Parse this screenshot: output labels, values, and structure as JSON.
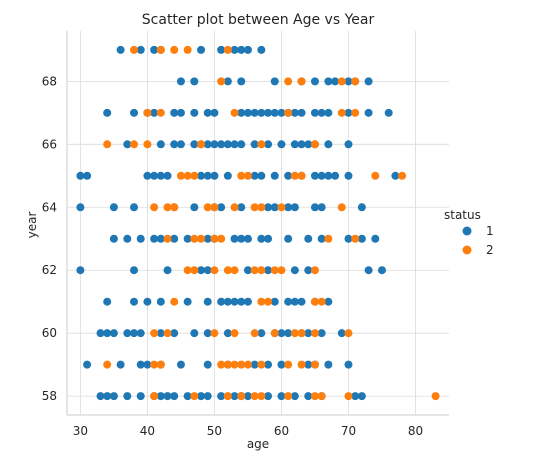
{
  "chart_data": {
    "type": "scatter",
    "title": "Scatter plot between Age vs Year",
    "xlabel": "age",
    "ylabel": "year",
    "xlim": [
      28,
      85
    ],
    "ylim": [
      57.4,
      69.6
    ],
    "xticks": [
      30,
      40,
      50,
      60,
      70,
      80
    ],
    "yticks": [
      58,
      60,
      62,
      64,
      66,
      68
    ],
    "grid": true,
    "legend": {
      "title": "status",
      "placement": "right"
    },
    "series": [
      {
        "name": "1",
        "color": "#1f77b4",
        "points": [
          [
            36,
            69
          ],
          [
            39,
            69
          ],
          [
            41,
            69
          ],
          [
            42,
            69
          ],
          [
            48,
            69
          ],
          [
            51,
            69
          ],
          [
            53,
            69
          ],
          [
            54,
            69
          ],
          [
            55,
            69
          ],
          [
            57,
            69
          ],
          [
            45,
            68
          ],
          [
            47,
            68
          ],
          [
            52,
            68
          ],
          [
            54,
            68
          ],
          [
            59,
            68
          ],
          [
            63,
            68
          ],
          [
            65,
            68
          ],
          [
            67,
            68
          ],
          [
            68,
            68
          ],
          [
            70,
            68
          ],
          [
            71,
            68
          ],
          [
            73,
            68
          ],
          [
            34,
            67
          ],
          [
            38,
            67
          ],
          [
            40,
            67
          ],
          [
            41,
            67
          ],
          [
            44,
            67
          ],
          [
            45,
            67
          ],
          [
            47,
            67
          ],
          [
            49,
            67
          ],
          [
            50,
            67
          ],
          [
            54,
            67
          ],
          [
            55,
            67
          ],
          [
            56,
            67
          ],
          [
            57,
            67
          ],
          [
            58,
            67
          ],
          [
            59,
            67
          ],
          [
            60,
            67
          ],
          [
            61,
            67
          ],
          [
            62,
            67
          ],
          [
            63,
            67
          ],
          [
            65,
            67
          ],
          [
            66,
            67
          ],
          [
            67,
            67
          ],
          [
            70,
            67
          ],
          [
            73,
            67
          ],
          [
            76,
            67
          ],
          [
            37,
            66
          ],
          [
            42,
            66
          ],
          [
            44,
            66
          ],
          [
            45,
            66
          ],
          [
            47,
            66
          ],
          [
            48,
            66
          ],
          [
            49,
            66
          ],
          [
            50,
            66
          ],
          [
            51,
            66
          ],
          [
            52,
            66
          ],
          [
            53,
            66
          ],
          [
            54,
            66
          ],
          [
            56,
            66
          ],
          [
            58,
            66
          ],
          [
            60,
            66
          ],
          [
            62,
            66
          ],
          [
            63,
            66
          ],
          [
            64,
            66
          ],
          [
            65,
            66
          ],
          [
            67,
            66
          ],
          [
            70,
            66
          ],
          [
            30,
            65
          ],
          [
            31,
            65
          ],
          [
            40,
            65
          ],
          [
            41,
            65
          ],
          [
            42,
            65
          ],
          [
            43,
            65
          ],
          [
            48,
            65
          ],
          [
            49,
            65
          ],
          [
            50,
            65
          ],
          [
            52,
            65
          ],
          [
            56,
            65
          ],
          [
            57,
            65
          ],
          [
            59,
            65
          ],
          [
            61,
            65
          ],
          [
            63,
            65
          ],
          [
            65,
            65
          ],
          [
            66,
            65
          ],
          [
            67,
            65
          ],
          [
            68,
            65
          ],
          [
            70,
            65
          ],
          [
            77,
            65
          ],
          [
            30,
            64
          ],
          [
            35,
            64
          ],
          [
            38,
            64
          ],
          [
            44,
            64
          ],
          [
            47,
            64
          ],
          [
            50,
            64
          ],
          [
            51,
            64
          ],
          [
            54,
            64
          ],
          [
            58,
            64
          ],
          [
            59,
            64
          ],
          [
            61,
            64
          ],
          [
            62,
            64
          ],
          [
            65,
            64
          ],
          [
            66,
            64
          ],
          [
            72,
            64
          ],
          [
            35,
            63
          ],
          [
            37,
            63
          ],
          [
            39,
            63
          ],
          [
            41,
            63
          ],
          [
            42,
            63
          ],
          [
            44,
            63
          ],
          [
            46,
            63
          ],
          [
            49,
            63
          ],
          [
            50,
            63
          ],
          [
            53,
            63
          ],
          [
            54,
            63
          ],
          [
            55,
            63
          ],
          [
            57,
            63
          ],
          [
            58,
            63
          ],
          [
            61,
            63
          ],
          [
            64,
            63
          ],
          [
            66,
            63
          ],
          [
            70,
            63
          ],
          [
            72,
            63
          ],
          [
            74,
            63
          ],
          [
            30,
            62
          ],
          [
            38,
            62
          ],
          [
            43,
            62
          ],
          [
            48,
            62
          ],
          [
            49,
            62
          ],
          [
            55,
            62
          ],
          [
            58,
            62
          ],
          [
            62,
            62
          ],
          [
            64,
            62
          ],
          [
            73,
            62
          ],
          [
            75,
            62
          ],
          [
            38,
            61
          ],
          [
            40,
            61
          ],
          [
            42,
            61
          ],
          [
            46,
            61
          ],
          [
            49,
            61
          ],
          [
            51,
            61
          ],
          [
            52,
            61
          ],
          [
            53,
            61
          ],
          [
            54,
            61
          ],
          [
            55,
            61
          ],
          [
            59,
            61
          ],
          [
            61,
            61
          ],
          [
            62,
            61
          ],
          [
            63,
            61
          ],
          [
            65,
            61
          ],
          [
            67,
            61
          ],
          [
            34,
            61
          ],
          [
            33,
            60
          ],
          [
            34,
            60
          ],
          [
            35,
            60
          ],
          [
            37,
            60
          ],
          [
            38,
            60
          ],
          [
            39,
            60
          ],
          [
            42,
            60
          ],
          [
            44,
            60
          ],
          [
            47,
            60
          ],
          [
            49,
            60
          ],
          [
            52,
            60
          ],
          [
            57,
            60
          ],
          [
            59,
            60
          ],
          [
            60,
            60
          ],
          [
            61,
            60
          ],
          [
            63,
            60
          ],
          [
            64,
            60
          ],
          [
            66,
            60
          ],
          [
            69,
            60
          ],
          [
            31,
            59
          ],
          [
            36,
            59
          ],
          [
            39,
            59
          ],
          [
            40,
            59
          ],
          [
            42,
            59
          ],
          [
            45,
            59
          ],
          [
            49,
            59
          ],
          [
            52,
            59
          ],
          [
            56,
            59
          ],
          [
            58,
            59
          ],
          [
            60,
            59
          ],
          [
            64,
            59
          ],
          [
            65,
            59
          ],
          [
            67,
            59
          ],
          [
            70,
            59
          ],
          [
            33,
            58
          ],
          [
            34,
            58
          ],
          [
            35,
            58
          ],
          [
            37,
            58
          ],
          [
            39,
            58
          ],
          [
            41,
            58
          ],
          [
            42,
            58
          ],
          [
            43,
            58
          ],
          [
            44,
            58
          ],
          [
            46,
            58
          ],
          [
            48,
            58
          ],
          [
            49,
            58
          ],
          [
            51,
            58
          ],
          [
            53,
            58
          ],
          [
            54,
            58
          ],
          [
            55,
            58
          ],
          [
            58,
            58
          ],
          [
            60,
            58
          ],
          [
            62,
            58
          ],
          [
            64,
            58
          ],
          [
            66,
            58
          ],
          [
            71,
            58
          ],
          [
            72,
            58
          ]
        ]
      },
      {
        "name": "2",
        "color": "#ff7f0e",
        "points": [
          [
            38,
            69
          ],
          [
            42,
            69
          ],
          [
            44,
            69
          ],
          [
            46,
            69
          ],
          [
            52,
            69
          ],
          [
            51,
            68
          ],
          [
            61,
            68
          ],
          [
            63,
            68
          ],
          [
            69,
            68
          ],
          [
            71,
            68
          ],
          [
            40,
            67
          ],
          [
            42,
            67
          ],
          [
            53,
            67
          ],
          [
            61,
            67
          ],
          [
            69,
            67
          ],
          [
            71,
            67
          ],
          [
            34,
            66
          ],
          [
            38,
            66
          ],
          [
            40,
            66
          ],
          [
            48,
            66
          ],
          [
            57,
            66
          ],
          [
            65,
            66
          ],
          [
            45,
            65
          ],
          [
            46,
            65
          ],
          [
            47,
            65
          ],
          [
            54,
            65
          ],
          [
            55,
            65
          ],
          [
            62,
            65
          ],
          [
            63,
            65
          ],
          [
            74,
            65
          ],
          [
            78,
            65
          ],
          [
            41,
            64
          ],
          [
            43,
            64
          ],
          [
            44,
            64
          ],
          [
            49,
            64
          ],
          [
            50,
            64
          ],
          [
            53,
            64
          ],
          [
            56,
            64
          ],
          [
            57,
            64
          ],
          [
            60,
            64
          ],
          [
            69,
            64
          ],
          [
            43,
            63
          ],
          [
            47,
            63
          ],
          [
            48,
            63
          ],
          [
            50,
            63
          ],
          [
            51,
            63
          ],
          [
            67,
            63
          ],
          [
            71,
            63
          ],
          [
            46,
            62
          ],
          [
            47,
            62
          ],
          [
            50,
            62
          ],
          [
            52,
            62
          ],
          [
            53,
            62
          ],
          [
            56,
            62
          ],
          [
            57,
            62
          ],
          [
            59,
            62
          ],
          [
            60,
            62
          ],
          [
            65,
            62
          ],
          [
            44,
            61
          ],
          [
            57,
            61
          ],
          [
            58,
            61
          ],
          [
            65,
            61
          ],
          [
            66,
            61
          ],
          [
            41,
            60
          ],
          [
            43,
            60
          ],
          [
            50,
            60
          ],
          [
            53,
            60
          ],
          [
            56,
            60
          ],
          [
            59,
            60
          ],
          [
            62,
            60
          ],
          [
            63,
            60
          ],
          [
            65,
            60
          ],
          [
            70,
            60
          ],
          [
            34,
            59
          ],
          [
            41,
            59
          ],
          [
            42,
            59
          ],
          [
            51,
            59
          ],
          [
            52,
            59
          ],
          [
            53,
            59
          ],
          [
            54,
            59
          ],
          [
            55,
            59
          ],
          [
            57,
            59
          ],
          [
            61,
            59
          ],
          [
            63,
            59
          ],
          [
            65,
            59
          ],
          [
            41,
            58
          ],
          [
            47,
            58
          ],
          [
            52,
            58
          ],
          [
            54,
            58
          ],
          [
            56,
            58
          ],
          [
            57,
            58
          ],
          [
            61,
            58
          ],
          [
            65,
            58
          ],
          [
            66,
            58
          ],
          [
            70,
            58
          ],
          [
            83,
            58
          ]
        ]
      }
    ]
  }
}
